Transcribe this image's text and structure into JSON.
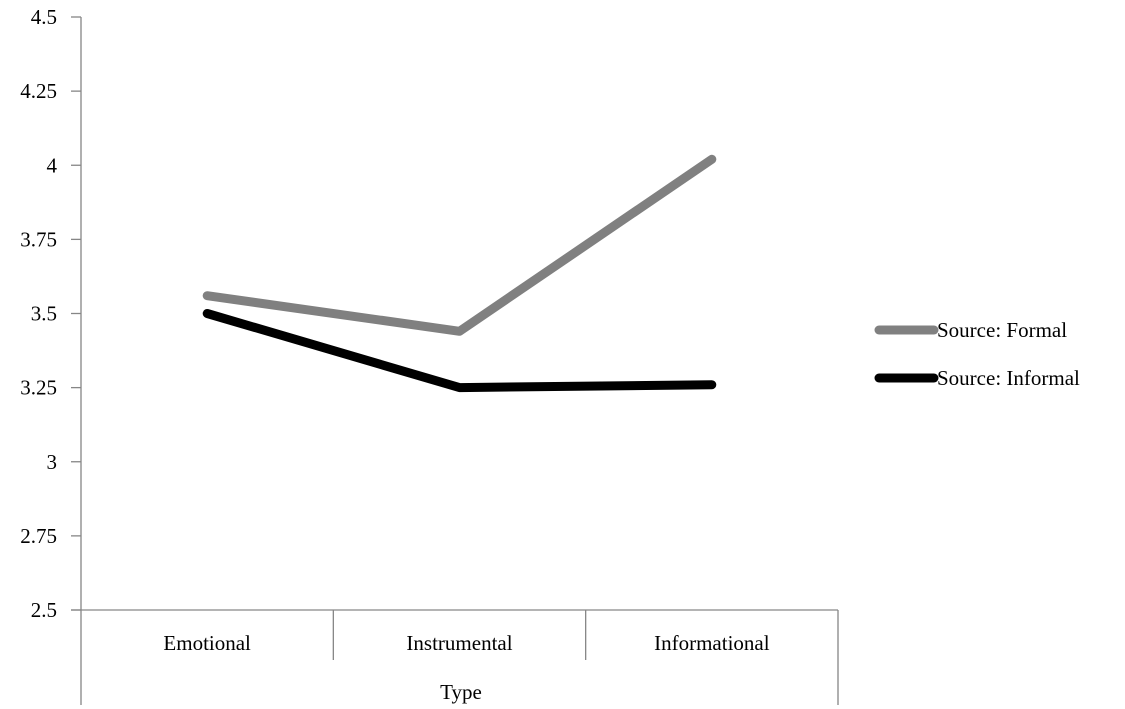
{
  "chart_data": {
    "type": "line",
    "title": "",
    "xlabel": "Type",
    "ylabel": "",
    "categories": [
      "Emotional",
      "Instrumental",
      "Informational"
    ],
    "ylim": [
      2.5,
      4.5
    ],
    "yticks": [
      2.5,
      2.75,
      3,
      3.25,
      3.5,
      3.75,
      4,
      4.25,
      4.5
    ],
    "ytick_labels": [
      "2.5",
      "2.75",
      "3",
      "3.25",
      "3.5",
      "3.75",
      "4",
      "4.25",
      "4.5"
    ],
    "grid": false,
    "legend_position": "right",
    "series": [
      {
        "name": "Source: Formal",
        "values": [
          3.56,
          3.44,
          4.02
        ],
        "color": "#808080"
      },
      {
        "name": "Source: Informal",
        "values": [
          3.5,
          3.25,
          3.26
        ],
        "color": "#000000"
      }
    ]
  }
}
